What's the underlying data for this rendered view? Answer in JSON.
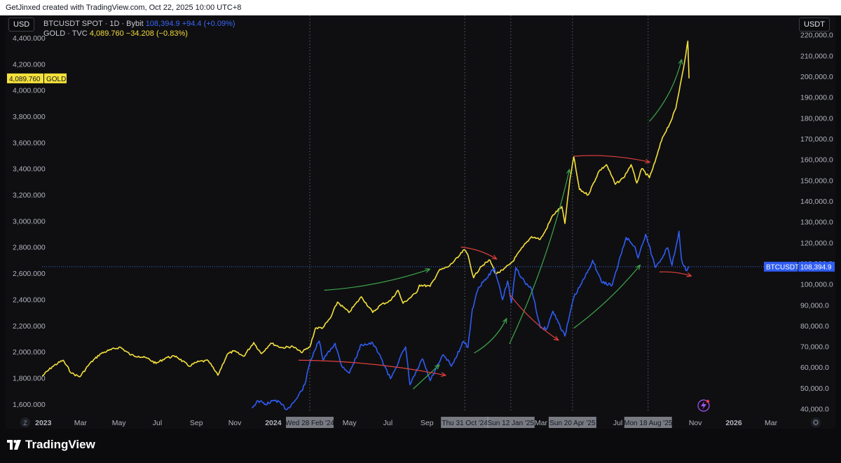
{
  "header": {
    "attribution": "GetJinxed created with TradingView.com, Oct 22, 2025 10:00 UTC+8"
  },
  "left_axis_button": "USD",
  "right_axis_button": "USDT",
  "legend": {
    "btc": {
      "symbol": "BTCUSDT SPOT · 1D · Bybit",
      "price": "108,394.9",
      "change": "+94.4 (+0.09%)"
    },
    "gold": {
      "symbol": "GOLD · TVC",
      "price": "4,089.760",
      "change": "−34.208 (−0.83%)"
    }
  },
  "brand": "TradingView",
  "colors": {
    "btc": "#2f5cf2",
    "gold": "#f5e13b",
    "arrow_green": "#3ea84a",
    "arrow_red": "#e0403c",
    "background": "#0f0f12"
  },
  "chart_data": {
    "type": "line",
    "x_range": [
      "2022-12-30",
      "2026-04-10"
    ],
    "left_axis": {
      "unit": "USD",
      "range": [
        1540,
        4550
      ],
      "ticks": [
        "1,600.000",
        "1,800.000",
        "2,000.000",
        "2,200.000",
        "2,400.000",
        "2,600.000",
        "2,800.000",
        "3,000.000",
        "3,200.000",
        "3,400.000",
        "3,600.000",
        "3,800.000",
        "4,000.000",
        "4,200.000",
        "4,400.000"
      ],
      "tick_values": [
        1600,
        1800,
        2000,
        2200,
        2400,
        2600,
        2800,
        3000,
        3200,
        3400,
        3600,
        3800,
        4000,
        4200,
        4400
      ]
    },
    "right_axis": {
      "unit": "USDT",
      "range": [
        38500,
        228000
      ],
      "ticks": [
        "40,000.0",
        "50,000.0",
        "60,000.0",
        "70,000.0",
        "80,000.0",
        "90,000.0",
        "100,000.0",
        "110,000.0",
        "120,000.0",
        "130,000.0",
        "140,000.0",
        "150,000.0",
        "160,000.0",
        "170,000.0",
        "180,000.0",
        "190,000.0",
        "200,000.0",
        "210,000.0",
        "220,000.0"
      ],
      "tick_values": [
        40000,
        50000,
        60000,
        70000,
        80000,
        90000,
        100000,
        110000,
        120000,
        130000,
        140000,
        150000,
        160000,
        170000,
        180000,
        190000,
        200000,
        210000,
        220000
      ]
    },
    "x_ticks": [
      {
        "date": "2023-01-01",
        "label": "2023",
        "bold": true
      },
      {
        "date": "2023-03-01",
        "label": "Mar"
      },
      {
        "date": "2023-05-01",
        "label": "May"
      },
      {
        "date": "2023-07-01",
        "label": "Jul"
      },
      {
        "date": "2023-09-01",
        "label": "Sep"
      },
      {
        "date": "2023-11-01",
        "label": "Nov"
      },
      {
        "date": "2024-01-01",
        "label": "2024",
        "bold": true
      },
      {
        "date": "2024-05-01",
        "label": "May"
      },
      {
        "date": "2024-07-01",
        "label": "Jul"
      },
      {
        "date": "2024-09-01",
        "label": "Sep"
      },
      {
        "date": "2025-03-01",
        "label": "Mar"
      },
      {
        "date": "2025-07-01",
        "label": "Jul"
      },
      {
        "date": "2025-11-01",
        "label": "Nov"
      },
      {
        "date": "2026-01-01",
        "label": "2026",
        "bold": true
      },
      {
        "date": "2026-03-01",
        "label": "Mar"
      }
    ],
    "marked_dates": [
      {
        "date": "2024-02-28",
        "label": "Wed 28 Feb '24"
      },
      {
        "date": "2024-10-31",
        "label": "Thu 31 Oct '24"
      },
      {
        "date": "2025-01-12",
        "label": "Sun 12 Jan '25"
      },
      {
        "date": "2025-04-20",
        "label": "Sun 20 Apr '25"
      },
      {
        "date": "2025-08-18",
        "label": "Mon 18 Aug '25"
      }
    ],
    "series": [
      {
        "name": "GOLD",
        "axis": "left",
        "last_label": "4,089.760",
        "tag": "GOLD",
        "points": [
          [
            "2022-12-30",
            1812
          ],
          [
            "2023-01-15",
            1885
          ],
          [
            "2023-02-01",
            1935
          ],
          [
            "2023-02-15",
            1835
          ],
          [
            "2023-02-28",
            1808
          ],
          [
            "2023-03-15",
            1905
          ],
          [
            "2023-04-01",
            1982
          ],
          [
            "2023-04-15",
            2010
          ],
          [
            "2023-05-03",
            2035
          ],
          [
            "2023-05-20",
            1975
          ],
          [
            "2023-06-01",
            1965
          ],
          [
            "2023-06-15",
            1950
          ],
          [
            "2023-06-29",
            1910
          ],
          [
            "2023-07-15",
            1955
          ],
          [
            "2023-07-31",
            1965
          ],
          [
            "2023-08-20",
            1890
          ],
          [
            "2023-09-05",
            1925
          ],
          [
            "2023-09-20",
            1930
          ],
          [
            "2023-10-05",
            1820
          ],
          [
            "2023-10-20",
            1980
          ],
          [
            "2023-10-30",
            2005
          ],
          [
            "2023-11-15",
            1965
          ],
          [
            "2023-12-01",
            2070
          ],
          [
            "2023-12-13",
            1985
          ],
          [
            "2023-12-28",
            2065
          ],
          [
            "2024-01-15",
            2030
          ],
          [
            "2024-02-01",
            2040
          ],
          [
            "2024-02-14",
            1995
          ],
          [
            "2024-02-28",
            2035
          ],
          [
            "2024-03-08",
            2180
          ],
          [
            "2024-03-20",
            2185
          ],
          [
            "2024-04-01",
            2260
          ],
          [
            "2024-04-12",
            2380
          ],
          [
            "2024-04-30",
            2300
          ],
          [
            "2024-05-20",
            2420
          ],
          [
            "2024-06-07",
            2300
          ],
          [
            "2024-06-20",
            2360
          ],
          [
            "2024-07-05",
            2390
          ],
          [
            "2024-07-17",
            2470
          ],
          [
            "2024-07-25",
            2370
          ],
          [
            "2024-08-15",
            2450
          ],
          [
            "2024-08-20",
            2510
          ],
          [
            "2024-09-06",
            2500
          ],
          [
            "2024-09-20",
            2620
          ],
          [
            "2024-10-05",
            2650
          ],
          [
            "2024-10-20",
            2720
          ],
          [
            "2024-10-30",
            2780
          ],
          [
            "2024-11-05",
            2740
          ],
          [
            "2024-11-14",
            2565
          ],
          [
            "2024-11-25",
            2650
          ],
          [
            "2024-12-10",
            2700
          ],
          [
            "2024-12-19",
            2595
          ],
          [
            "2024-12-31",
            2625
          ],
          [
            "2025-01-15",
            2690
          ],
          [
            "2025-01-31",
            2800
          ],
          [
            "2025-02-14",
            2880
          ],
          [
            "2025-02-28",
            2860
          ],
          [
            "2025-03-07",
            2915
          ],
          [
            "2025-03-20",
            3045
          ],
          [
            "2025-04-03",
            3110
          ],
          [
            "2025-04-08",
            2980
          ],
          [
            "2025-04-16",
            3320
          ],
          [
            "2025-04-22",
            3490
          ],
          [
            "2025-05-01",
            3240
          ],
          [
            "2025-05-15",
            3200
          ],
          [
            "2025-06-01",
            3380
          ],
          [
            "2025-06-13",
            3430
          ],
          [
            "2025-06-27",
            3280
          ],
          [
            "2025-07-10",
            3330
          ],
          [
            "2025-07-22",
            3430
          ],
          [
            "2025-07-31",
            3290
          ],
          [
            "2025-08-08",
            3400
          ],
          [
            "2025-08-20",
            3330
          ],
          [
            "2025-08-29",
            3450
          ],
          [
            "2025-09-10",
            3640
          ],
          [
            "2025-09-23",
            3760
          ],
          [
            "2025-10-01",
            3860
          ],
          [
            "2025-10-08",
            4040
          ],
          [
            "2025-10-15",
            4220
          ],
          [
            "2025-10-20",
            4375
          ],
          [
            "2025-10-22",
            4090
          ]
        ]
      },
      {
        "name": "BTCUSDT",
        "axis": "right",
        "last_label": "108,394.9",
        "tag": "BTCUSDT",
        "points": [
          [
            "2023-11-28",
            40500
          ],
          [
            "2023-12-08",
            43800
          ],
          [
            "2023-12-20",
            42200
          ],
          [
            "2024-01-05",
            44200
          ],
          [
            "2024-01-23",
            39700
          ],
          [
            "2024-02-08",
            45200
          ],
          [
            "2024-02-20",
            51500
          ],
          [
            "2024-02-28",
            62000
          ],
          [
            "2024-03-05",
            67000
          ],
          [
            "2024-03-14",
            72600
          ],
          [
            "2024-03-20",
            63500
          ],
          [
            "2024-04-08",
            71500
          ],
          [
            "2024-04-18",
            61000
          ],
          [
            "2024-05-01",
            57200
          ],
          [
            "2024-05-20",
            71000
          ],
          [
            "2024-06-07",
            71500
          ],
          [
            "2024-06-20",
            64500
          ],
          [
            "2024-07-05",
            54500
          ],
          [
            "2024-07-29",
            69800
          ],
          [
            "2024-08-05",
            51500
          ],
          [
            "2024-08-25",
            64000
          ],
          [
            "2024-09-06",
            53500
          ],
          [
            "2024-09-27",
            66000
          ],
          [
            "2024-10-10",
            60500
          ],
          [
            "2024-10-29",
            72500
          ],
          [
            "2024-11-05",
            69500
          ],
          [
            "2024-11-12",
            88000
          ],
          [
            "2024-11-22",
            98500
          ],
          [
            "2024-12-05",
            103000
          ],
          [
            "2024-12-17",
            107800
          ],
          [
            "2024-12-30",
            92500
          ],
          [
            "2025-01-07",
            101500
          ],
          [
            "2025-01-13",
            91000
          ],
          [
            "2025-01-20",
            108000
          ],
          [
            "2025-02-03",
            101000
          ],
          [
            "2025-02-14",
            97500
          ],
          [
            "2025-02-28",
            79000
          ],
          [
            "2025-03-10",
            78500
          ],
          [
            "2025-03-20",
            87000
          ],
          [
            "2025-04-08",
            75000
          ],
          [
            "2025-04-22",
            93500
          ],
          [
            "2025-05-10",
            103500
          ],
          [
            "2025-05-22",
            111500
          ],
          [
            "2025-06-05",
            101000
          ],
          [
            "2025-06-22",
            99500
          ],
          [
            "2025-07-14",
            122500
          ],
          [
            "2025-07-28",
            118000
          ],
          [
            "2025-08-02",
            112500
          ],
          [
            "2025-08-14",
            124000
          ],
          [
            "2025-08-30",
            108000
          ],
          [
            "2025-09-18",
            117500
          ],
          [
            "2025-09-25",
            109000
          ],
          [
            "2025-10-06",
            125500
          ],
          [
            "2025-10-10",
            112000
          ],
          [
            "2025-10-17",
            106500
          ],
          [
            "2025-10-22",
            108395
          ]
        ]
      }
    ],
    "annotations": [
      {
        "color": "green",
        "from": [
          "2024-03-22",
          2470
        ],
        "to": [
          "2024-09-05",
          2630
        ],
        "bow": 10
      },
      {
        "color": "red",
        "from": [
          "2024-10-25",
          2800
        ],
        "to": [
          "2024-12-20",
          2710
        ],
        "bow": -6
      },
      {
        "color": "green",
        "from": [
          "2025-01-10",
          2060
        ],
        "to": [
          "2025-04-15",
          3390
        ],
        "bow": 14
      },
      {
        "color": "red",
        "from": [
          "2025-04-22",
          3495
        ],
        "to": [
          "2025-08-20",
          3450
        ],
        "bow": -8
      },
      {
        "color": "green",
        "from": [
          "2025-08-20",
          3760
        ],
        "to": [
          "2025-10-10",
          4230
        ],
        "bow": 12
      },
      {
        "color": "green",
        "from": [
          "2024-08-10",
          49500,
          "right"
        ],
        "to": [
          "2024-09-20",
          61000,
          "right"
        ],
        "bow": 0
      },
      {
        "color": "red",
        "from": [
          "2024-02-10",
          1935
        ],
        "to": [
          "2024-09-30",
          1820
        ],
        "bow": -10
      },
      {
        "color": "green",
        "from": [
          "2024-11-15",
          1990
        ],
        "to": [
          "2025-01-05",
          2250
        ],
        "bow": 10
      },
      {
        "color": "red",
        "from": [
          "2025-01-10",
          2440
        ],
        "to": [
          "2025-03-28",
          2090
        ],
        "bow": 8
      },
      {
        "color": "green",
        "from": [
          "2025-04-22",
          2180
        ],
        "to": [
          "2025-08-05",
          2660
        ],
        "bow": 8
      },
      {
        "color": "red",
        "from": [
          "2025-09-05",
          2610
        ],
        "to": [
          "2025-10-25",
          2580
        ],
        "bow": -4
      }
    ],
    "grid": false,
    "crosshair": {
      "axis": "right",
      "value": 108394.9
    }
  }
}
